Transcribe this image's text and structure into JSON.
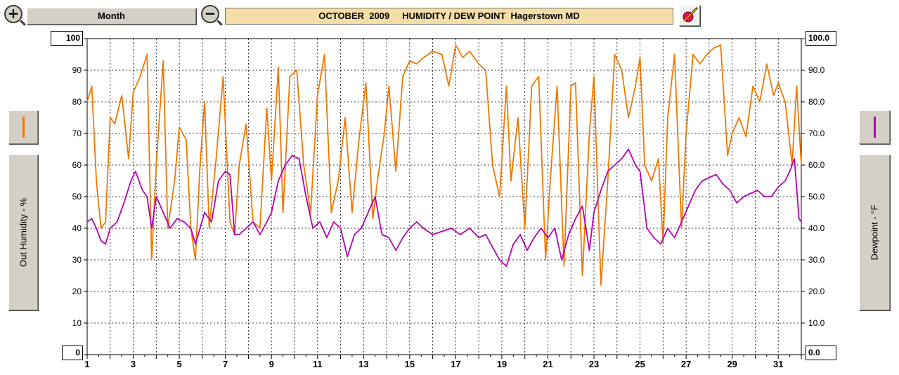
{
  "toolbar": {
    "zoom_in_label": "+",
    "period_label": "Month",
    "zoom_out_label": "−",
    "title": "OCTOBER  2009     HUMIDITY / DEW POINT  Hagerstown MD"
  },
  "left_axis": {
    "label": "Out Humidity - %",
    "max_box": "100",
    "min_box": "0"
  },
  "right_axis": {
    "label": "Dewpoint - °F",
    "max_box": "100.0",
    "min_box": "0.0"
  },
  "colors": {
    "humidity": "#f07800",
    "dewpoint": "#b400b4",
    "grid": "#000000"
  },
  "chart_data": {
    "type": "line",
    "grid": true,
    "xlim": [
      1,
      32
    ],
    "ylim": [
      0,
      100
    ],
    "x_ticks": [
      "1",
      "3",
      "5",
      "7",
      "9",
      "11",
      "13",
      "15",
      "17",
      "19",
      "21",
      "23",
      "25",
      "27",
      "29",
      "31"
    ],
    "y_ticks_left": [
      "90",
      "80",
      "70",
      "60",
      "50",
      "40",
      "30",
      "20",
      "10"
    ],
    "y_ticks_right": [
      "90.0",
      "80.0",
      "70.0",
      "60.0",
      "50.0",
      "40.0",
      "30.0",
      "20.0",
      "10.0"
    ],
    "series": [
      {
        "axis": "left",
        "x": [
          1.0,
          1.2,
          1.4,
          1.6,
          1.8,
          2.0,
          2.2,
          2.5,
          2.8,
          3.0,
          3.3,
          3.6,
          3.8,
          4.0,
          4.3,
          4.5,
          4.8,
          5.0,
          5.3,
          5.5,
          5.7,
          5.9,
          6.1,
          6.3,
          6.6,
          6.9,
          7.2,
          7.4,
          7.6,
          7.9,
          8.2,
          8.5,
          8.8,
          9.0,
          9.3,
          9.5,
          9.8,
          10.1,
          10.4,
          10.7,
          11.0,
          11.3,
          11.6,
          11.9,
          12.2,
          12.5,
          12.8,
          13.1,
          13.4,
          13.6,
          13.9,
          14.1,
          14.4,
          14.7,
          15.0,
          15.3,
          15.6,
          16.0,
          16.4,
          16.7,
          17.0,
          17.3,
          17.6,
          18.0,
          18.3,
          18.6,
          18.9,
          19.2,
          19.4,
          19.7,
          20.0,
          20.3,
          20.6,
          20.9,
          21.1,
          21.4,
          21.7,
          22.0,
          22.2,
          22.5,
          22.8,
          23.0,
          23.3,
          23.6,
          23.9,
          24.2,
          24.5,
          24.8,
          25.0,
          25.2,
          25.5,
          25.8,
          26.0,
          26.2,
          26.5,
          26.8,
          27.0,
          27.3,
          27.6,
          27.9,
          28.2,
          28.5,
          28.8,
          29.0,
          29.3,
          29.6,
          29.9,
          30.2,
          30.5,
          30.8,
          31.0,
          31.3,
          31.6,
          31.8,
          32.0
        ],
        "values": [
          80,
          85,
          55,
          40,
          42,
          75,
          73,
          82,
          62,
          83,
          88,
          95,
          30,
          60,
          93,
          40,
          55,
          72,
          68,
          40,
          30,
          60,
          80,
          40,
          62,
          88,
          42,
          38,
          60,
          73,
          42,
          40,
          78,
          55,
          91,
          45,
          88,
          90,
          60,
          45,
          82,
          95,
          45,
          55,
          75,
          45,
          68,
          86,
          43,
          55,
          70,
          85,
          58,
          88,
          93,
          92,
          94,
          96,
          95,
          85,
          98,
          94,
          96,
          92,
          90,
          60,
          50,
          85,
          55,
          75,
          40,
          85,
          88,
          30,
          55,
          85,
          28,
          85,
          86,
          25,
          70,
          88,
          22,
          55,
          95,
          90,
          75,
          85,
          94,
          60,
          55,
          62,
          35,
          75,
          95,
          40,
          70,
          95,
          92,
          95,
          97,
          98,
          63,
          70,
          75,
          69,
          85,
          80,
          92,
          82,
          86,
          80,
          60,
          85,
          60
        ]
      },
      {
        "axis": "right",
        "x": [
          1.0,
          1.2,
          1.4,
          1.6,
          1.8,
          2.0,
          2.3,
          2.6,
          2.9,
          3.1,
          3.4,
          3.6,
          3.8,
          4.0,
          4.3,
          4.6,
          4.9,
          5.2,
          5.5,
          5.7,
          5.9,
          6.1,
          6.4,
          6.7,
          7.0,
          7.2,
          7.4,
          7.6,
          7.9,
          8.2,
          8.5,
          8.8,
          9.0,
          9.3,
          9.6,
          9.9,
          10.2,
          10.5,
          10.8,
          11.1,
          11.4,
          11.7,
          12.0,
          12.3,
          12.6,
          12.9,
          13.2,
          13.5,
          13.8,
          14.1,
          14.4,
          14.7,
          15.0,
          15.3,
          15.6,
          16.0,
          16.4,
          16.8,
          17.2,
          17.6,
          18.0,
          18.3,
          18.6,
          18.9,
          19.2,
          19.5,
          19.8,
          20.1,
          20.4,
          20.7,
          21.0,
          21.3,
          21.6,
          21.9,
          22.2,
          22.5,
          22.8,
          23.0,
          23.3,
          23.6,
          23.9,
          24.2,
          24.5,
          24.8,
          25.0,
          25.3,
          25.6,
          25.9,
          26.2,
          26.5,
          26.8,
          27.1,
          27.4,
          27.7,
          28.0,
          28.3,
          28.6,
          28.9,
          29.2,
          29.5,
          29.8,
          30.1,
          30.4,
          30.7,
          31.0,
          31.3,
          31.5,
          31.7,
          31.9,
          32.0
        ],
        "values": [
          42,
          43,
          40,
          36,
          35,
          40,
          42,
          48,
          55,
          58,
          52,
          50,
          40,
          50,
          45,
          40,
          43,
          42,
          40,
          35,
          40,
          45,
          42,
          55,
          58,
          57,
          38,
          38,
          40,
          42,
          38,
          42,
          45,
          55,
          60,
          63,
          62,
          50,
          40,
          42,
          37,
          42,
          40,
          31,
          38,
          40,
          45,
          50,
          38,
          37,
          33,
          37,
          40,
          42,
          40,
          38,
          39,
          40,
          38,
          40,
          37,
          38,
          34,
          30,
          28,
          35,
          38,
          33,
          37,
          40,
          37,
          40,
          30,
          38,
          43,
          47,
          33,
          45,
          52,
          58,
          60,
          62,
          65,
          60,
          58,
          40,
          37,
          35,
          40,
          37,
          42,
          47,
          52,
          55,
          56,
          57,
          54,
          52,
          48,
          50,
          51,
          52,
          50,
          50,
          53,
          55,
          58,
          62,
          43,
          42
        ]
      }
    ]
  }
}
